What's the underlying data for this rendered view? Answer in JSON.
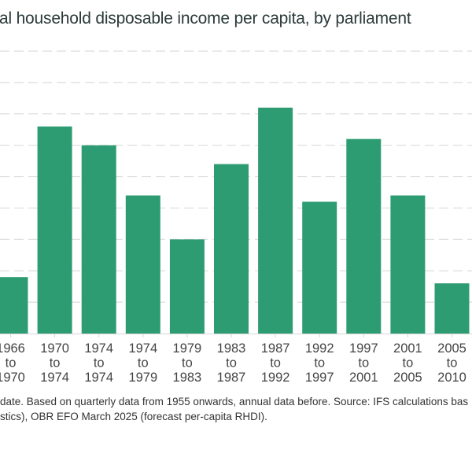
{
  "title": "al household disposable income per capita, by parliament",
  "notes": [
    "date. Based on quarterly data from 1955 onwards, annual data before. Source: IFS calculations bas",
    "stics), OBR EFO March 2025 (forecast per-capita RHDI)."
  ],
  "chart_data": {
    "type": "bar",
    "title": "al household disposable income per capita, by parliament",
    "categories": [
      [
        "1966",
        "to",
        "1970"
      ],
      [
        "1970",
        "to",
        "1974"
      ],
      [
        "1974",
        "to",
        "1974"
      ],
      [
        "1974",
        "to",
        "1979"
      ],
      [
        "1979",
        "to",
        "1983"
      ],
      [
        "1983",
        "to",
        "1987"
      ],
      [
        "1987",
        "to",
        "1992"
      ],
      [
        "1992",
        "to",
        "1997"
      ],
      [
        "1997",
        "to",
        "2001"
      ],
      [
        "2001",
        "to",
        "2005"
      ],
      [
        "2005",
        "to",
        "2010"
      ]
    ],
    "values": [
      1.8,
      6.6,
      6.0,
      4.4,
      3.0,
      5.4,
      7.2,
      4.2,
      6.2,
      4.4,
      1.6
    ],
    "ylim": [
      0,
      9
    ],
    "grid": true,
    "bar_color": "#2e9c72"
  }
}
